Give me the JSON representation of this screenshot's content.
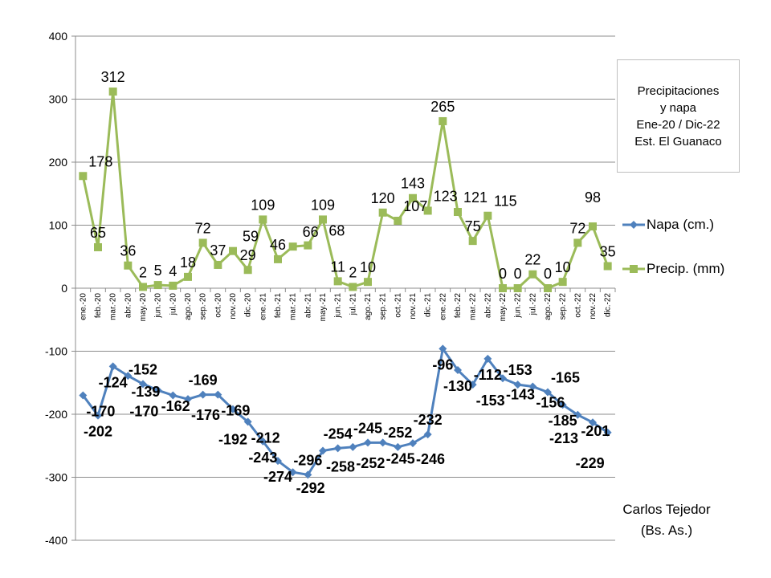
{
  "chart_data": {
    "type": "line",
    "title": [
      "Precipitaciones",
      "y napa",
      "Ene-20 / Dic-22",
      "Est. El Guanaco"
    ],
    "categories": [
      "ene.-20",
      "feb.-20",
      "mar.-20",
      "abr.-20",
      "may.-20",
      "jun.-20",
      "jul.-20",
      "ago.-20",
      "sep.-20",
      "oct.-20",
      "nov.-20",
      "dic.-20",
      "ene.-21",
      "feb.-21",
      "mar.-21",
      "abr.-21",
      "may.-21",
      "jun.-21",
      "jul.-21",
      "ago.-21",
      "sep.-21",
      "oct.-21",
      "nov.-21",
      "dic.-21",
      "ene.-22",
      "feb.-22",
      "mar.-22",
      "abr.-22",
      "may.-22",
      "jun.-22",
      "jul.-22",
      "ago.-22",
      "sep.-22",
      "oct.-22",
      "nov.-22",
      "dic.-22"
    ],
    "series": [
      {
        "name": "Napa (cm.)",
        "color": "#4f81bd",
        "marker": "diamond",
        "values": [
          -170,
          -202,
          -124,
          -139,
          -152,
          -162,
          -170,
          -176,
          -169,
          -169,
          -192,
          -212,
          -243,
          -274,
          -292,
          -296,
          -258,
          -254,
          -252,
          -245,
          -245,
          -252,
          -246,
          -232,
          -96,
          -130,
          -153,
          -112,
          -143,
          -153,
          -156,
          -165,
          -185,
          -201,
          -213,
          -229
        ]
      },
      {
        "name": "Precip. (mm)",
        "color": "#9bbb59",
        "marker": "square",
        "values": [
          178,
          65,
          312,
          36,
          2,
          5,
          4,
          18,
          72,
          37,
          59,
          29,
          109,
          46,
          66,
          68,
          109,
          11,
          2,
          10,
          120,
          107,
          143,
          123,
          265,
          121,
          75,
          115,
          0,
          0,
          22,
          0,
          10,
          72,
          98,
          35
        ]
      }
    ],
    "ylim": [
      -400,
      400
    ],
    "yticks": [
      -400,
      -300,
      -200,
      -100,
      0,
      100,
      200,
      300,
      400
    ],
    "grid": true,
    "legend": "right",
    "annotation": [
      "Carlos Tejedor",
      "(Bs. As.)"
    ]
  }
}
